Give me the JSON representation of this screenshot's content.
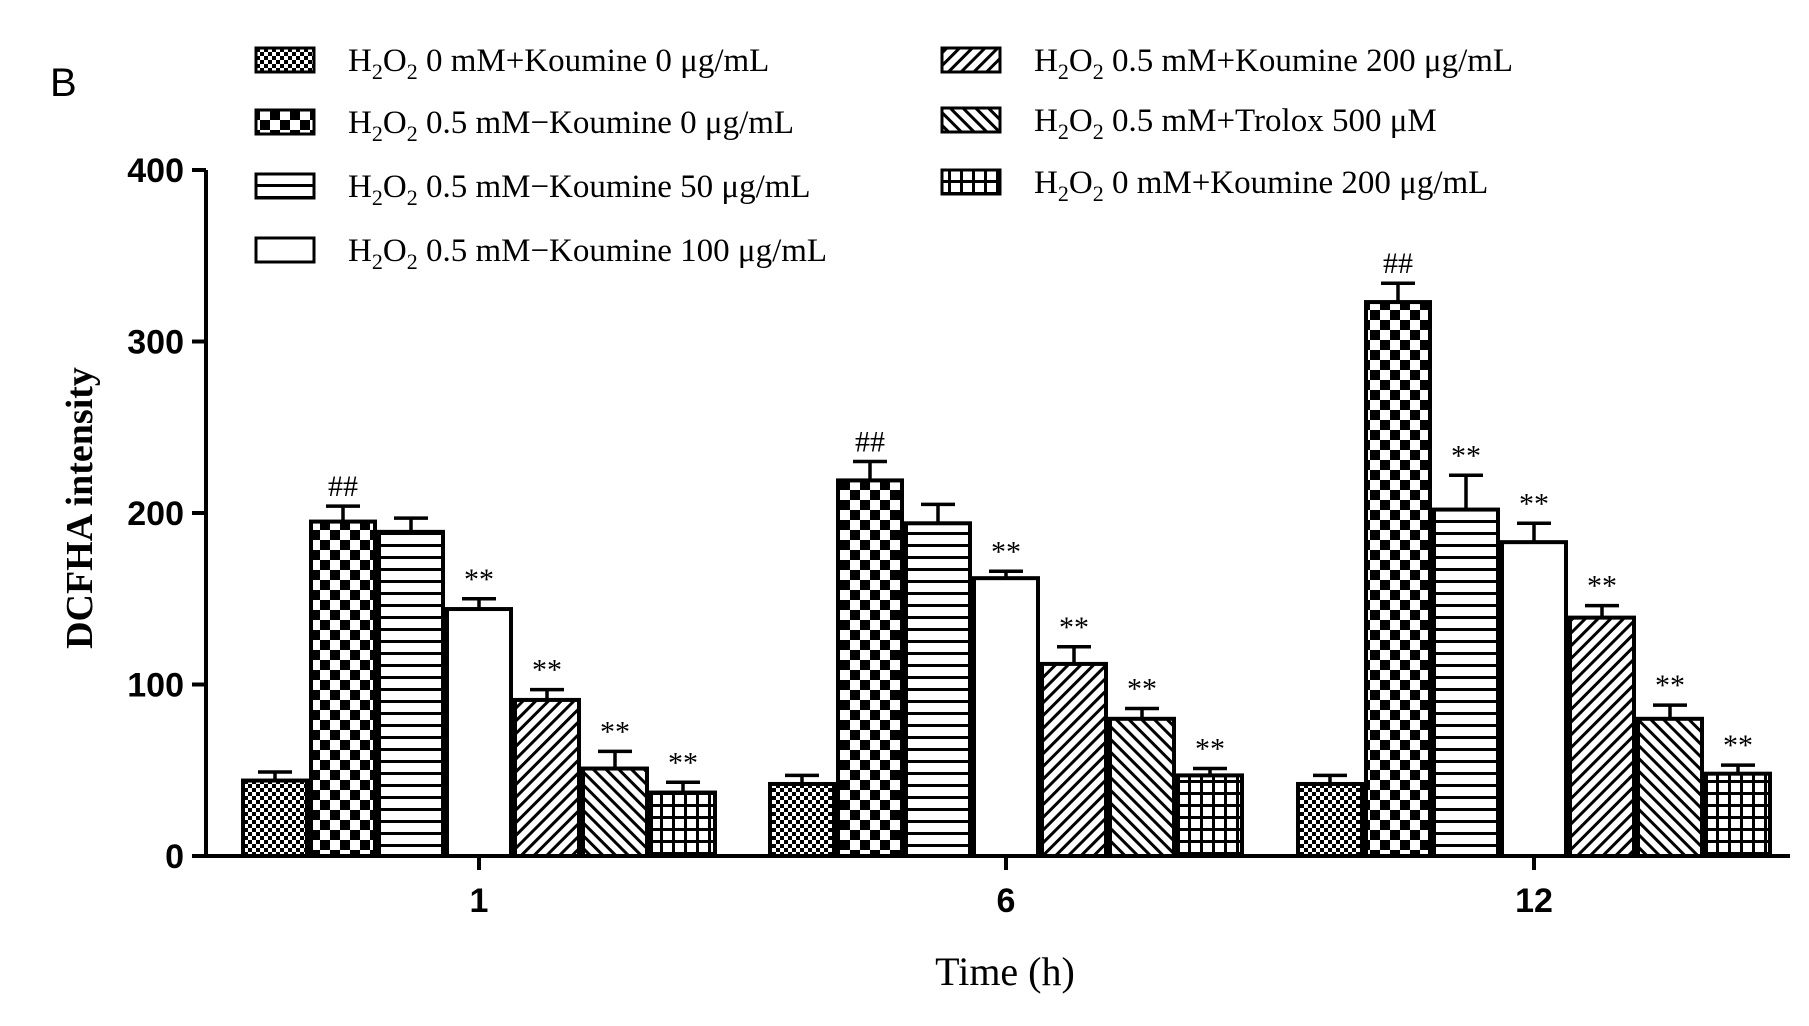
{
  "panel_label": "B",
  "chart_data": {
    "type": "bar",
    "title": "",
    "xlabel": "Time (h)",
    "ylabel": "DCFHA intensity",
    "ylim": [
      0,
      400
    ],
    "yticks": [
      0,
      100,
      200,
      300,
      400
    ],
    "categories": [
      "1",
      "6",
      "12"
    ],
    "legend_position": "top",
    "series": [
      {
        "name": "H2O2 0 mM+Koumine 0 μg/mL",
        "legend_text": " 0 mM+Koumine 0 μg/mL",
        "pattern": "fine-checker",
        "values": [
          44,
          42,
          42
        ],
        "errors": [
          5,
          5,
          5
        ],
        "annotations": [
          "",
          "",
          ""
        ]
      },
      {
        "name": "H2O2 0.5 mM−Koumine 0 μg/mL",
        "legend_text": " 0.5 mM−Koumine 0 μg/mL",
        "pattern": "coarse-checker",
        "values": [
          195,
          219,
          323
        ],
        "errors": [
          9,
          11,
          11
        ],
        "annotations": [
          "##",
          "##",
          "##"
        ]
      },
      {
        "name": "H2O2 0.5 mM−Koumine 50 μg/mL",
        "legend_text": " 0.5 mM−Koumine 50 μg/mL",
        "pattern": "horizontal",
        "values": [
          189,
          194,
          202
        ],
        "errors": [
          8,
          11,
          20
        ],
        "annotations": [
          "",
          "",
          "**"
        ]
      },
      {
        "name": "H2O2 0.5 mM−Koumine 100 μg/mL",
        "legend_text": " 0.5 mM−Koumine 100 μg/mL",
        "pattern": "none",
        "values": [
          144,
          162,
          183
        ],
        "errors": [
          6,
          4,
          11
        ],
        "annotations": [
          "**",
          "**",
          "**"
        ]
      },
      {
        "name": "H2O2 0.5 mM+Koumine 200 μg/mL",
        "legend_text": " 0.5 mM+Koumine 200 μg/mL",
        "pattern": "diagonal-forward",
        "values": [
          91,
          112,
          139
        ],
        "errors": [
          6,
          10,
          7
        ],
        "annotations": [
          "**",
          "**",
          "**"
        ]
      },
      {
        "name": "H2O2 0.5 mM+Trolox 500 μM",
        "legend_text": " 0.5 mM+Trolox 500 μM",
        "pattern": "diagonal-backward",
        "values": [
          51,
          80,
          80
        ],
        "errors": [
          10,
          6,
          8
        ],
        "annotations": [
          "**",
          "**",
          "**"
        ]
      },
      {
        "name": "H2O2 0 mM+Koumine 200 μg/mL",
        "legend_text": " 0 mM+Koumine 200 μg/mL",
        "pattern": "grid",
        "values": [
          37,
          47,
          48
        ],
        "errors": [
          6,
          4,
          5
        ],
        "annotations": [
          "**",
          "**",
          "**"
        ]
      }
    ]
  }
}
